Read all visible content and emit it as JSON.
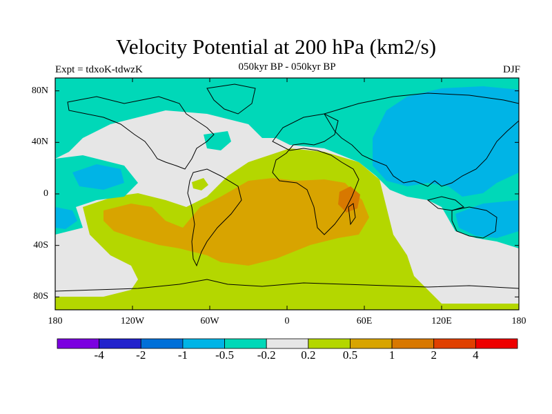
{
  "title": "Velocity Potential at 200 hPa (km2/s)",
  "subtitle": "050kyr BP - 050kyr BP",
  "expt_label": "Expt = tdxoK-tdwzK",
  "season": "DJF",
  "map": {
    "lon_range": [
      -180,
      180
    ],
    "lat_range": [
      -90,
      90
    ],
    "projection": "cylindrical equidistant",
    "lat_ticks": [
      {
        "value": 80,
        "label": "80N"
      },
      {
        "value": 40,
        "label": "40N"
      },
      {
        "value": 0,
        "label": "0"
      },
      {
        "value": -40,
        "label": "40S"
      },
      {
        "value": -80,
        "label": "80S"
      }
    ],
    "lon_ticks": [
      {
        "value": -180,
        "label": "180"
      },
      {
        "value": -120,
        "label": "120W"
      },
      {
        "value": -60,
        "label": "60W"
      },
      {
        "value": 0,
        "label": "0"
      },
      {
        "value": 60,
        "label": "60E"
      },
      {
        "value": 120,
        "label": "120E"
      },
      {
        "value": 180,
        "label": "180"
      }
    ]
  },
  "colorbar": {
    "colors": [
      "#7b00e0",
      "#2222cc",
      "#0070d8",
      "#00b4e6",
      "#00d8b8",
      "#e6e6e6",
      "#b4d700",
      "#d8a400",
      "#d87800",
      "#e04000",
      "#ee0000"
    ],
    "labels": [
      "-4",
      "-2",
      "-1",
      "-0.5",
      "-0.2",
      "0.2",
      "0.5",
      "1",
      "2",
      "4"
    ]
  }
}
